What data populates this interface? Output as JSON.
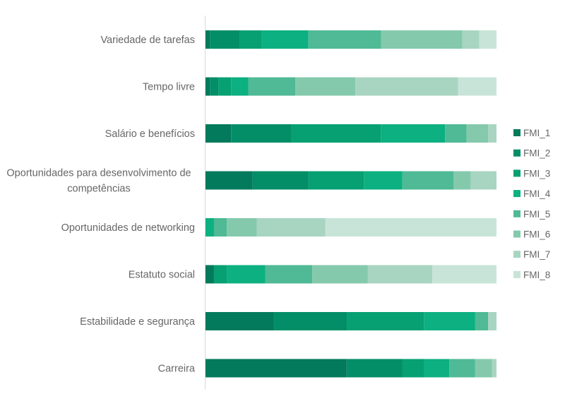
{
  "chart_data": {
    "type": "bar",
    "orientation": "horizontal",
    "stacked": "percent",
    "title": "",
    "xlabel": "",
    "ylabel": "",
    "xlim": [
      0,
      100
    ],
    "grid": false,
    "legend_position": "right",
    "categories": [
      "Variedade de tarefas",
      "Tempo livre",
      "Salário e benefícios",
      "Oportunidades para desenvolvimento de competências",
      "Oportunidades de networking",
      "Estatuto social",
      "Estabilidade e segurança",
      "Carreira"
    ],
    "series": [
      {
        "name": "FMI_1",
        "color": "#027a5b",
        "values": [
          1.5,
          1.5,
          8.8,
          16.2,
          0,
          2.9,
          23.5,
          48.5
        ]
      },
      {
        "name": "FMI_2",
        "color": "#038e67",
        "values": [
          10.3,
          2.9,
          20.6,
          19.1,
          0,
          0,
          25.0,
          19.1
        ]
      },
      {
        "name": "FMI_3",
        "color": "#06a073",
        "values": [
          7.4,
          4.4,
          30.9,
          19.1,
          0,
          4.4,
          26.5,
          7.4
        ]
      },
      {
        "name": "FMI_4",
        "color": "#0db080",
        "values": [
          16.2,
          5.9,
          22.1,
          13.2,
          2.9,
          13.2,
          17.6,
          8.8
        ]
      },
      {
        "name": "FMI_5",
        "color": "#4fba95",
        "values": [
          25.0,
          16.2,
          7.4,
          17.6,
          4.4,
          16.2,
          4.4,
          8.8
        ]
      },
      {
        "name": "FMI_6",
        "color": "#85c9ac",
        "values": [
          27.9,
          20.6,
          7.4,
          5.9,
          10.3,
          19.1,
          0,
          5.9
        ]
      },
      {
        "name": "FMI_7",
        "color": "#a8d5c1",
        "values": [
          5.9,
          35.3,
          2.9,
          8.8,
          23.5,
          22.1,
          2.9,
          1.5
        ]
      },
      {
        "name": "FMI_8",
        "color": "#c8e4d8",
        "values": [
          5.9,
          13.2,
          0,
          0,
          58.8,
          22.1,
          0,
          0
        ]
      }
    ]
  }
}
